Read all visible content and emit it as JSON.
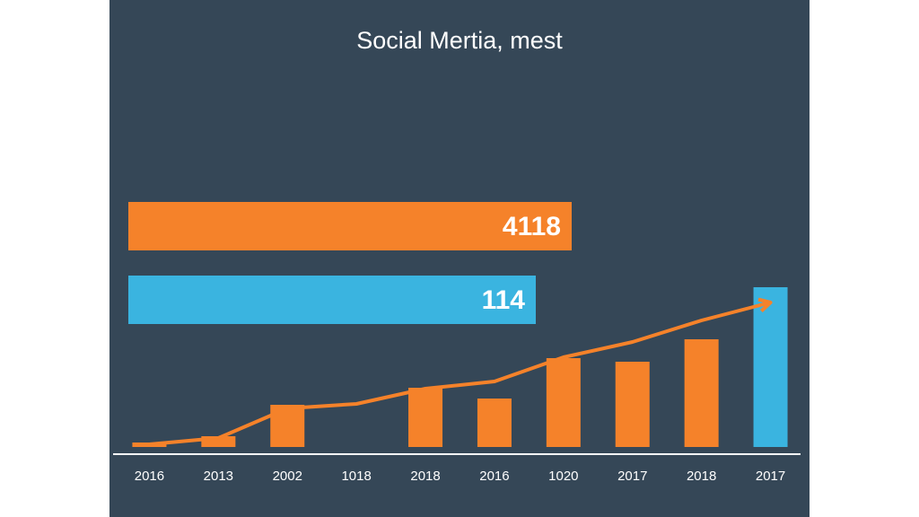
{
  "chart_data": {
    "type": "bar",
    "title": "Social Mertia, mest",
    "callouts": [
      {
        "label": "4118",
        "color": "#f5822a"
      },
      {
        "label": "114",
        "color": "#3ab4e0"
      }
    ],
    "categories": [
      "2016",
      "2013",
      "2002",
      "1018",
      "2018",
      "2016",
      "1020",
      "2017",
      "2018",
      "2017"
    ],
    "series": [
      {
        "type": "bar",
        "colors": [
          "#f5822a",
          "#f5822a",
          "#f5822a",
          "#f5822a",
          "#f5822a",
          "#f5822a",
          "#f5822a",
          "#f5822a",
          "#f5822a",
          "#3ab4e0"
        ],
        "values": [
          2.5,
          6,
          23.5,
          null,
          33,
          27,
          49.5,
          47.5,
          60,
          89
        ]
      },
      {
        "type": "line",
        "color": "#f5822a",
        "values": [
          1.5,
          5,
          21.5,
          24,
          32.5,
          36.5,
          50,
          58.5,
          70.5,
          80.5
        ]
      }
    ],
    "ylim": [
      0,
      100
    ]
  }
}
